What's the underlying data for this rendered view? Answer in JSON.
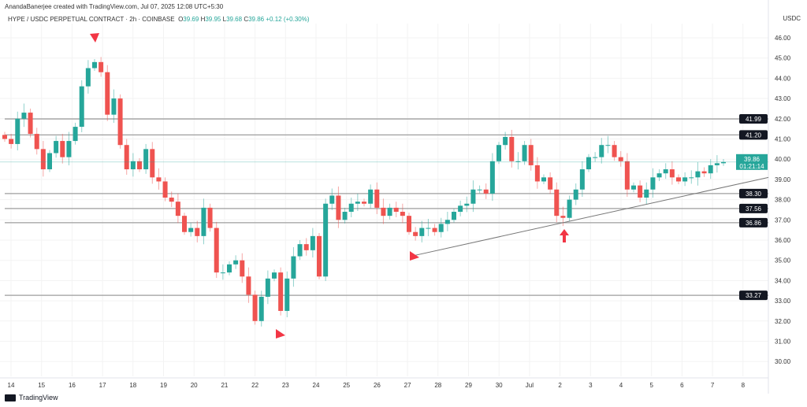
{
  "header": {
    "credit": "AnandaBanerjee created with TradingView.com, Jul 07, 2025 12:08 UTC+5:30",
    "symbol": "HYPE / USDC PERPETUAL CONTRACT · 2h · COINBASE",
    "open_label": "O",
    "open": "39.69",
    "high_label": "H",
    "high": "39.95",
    "low_label": "L",
    "low": "39.68",
    "close_label": "C",
    "close": "39.86",
    "change": "+0.12 (+0.30%)",
    "currency": "USDC"
  },
  "footer": {
    "brand": "TradingView"
  },
  "colors": {
    "up": "#26a69a",
    "down": "#ef5350",
    "level_line": "#9e9e9e",
    "marker": "#f23645",
    "price_label": "#26a69a"
  },
  "chart_data": {
    "type": "candlestick",
    "interval": "2h",
    "ylim": [
      29.5,
      46.6
    ],
    "y_ticks": [
      "46.00",
      "45.00",
      "44.00",
      "43.00",
      "42.00",
      "41.00",
      "40.00",
      "39.00",
      "38.00",
      "37.00",
      "36.00",
      "35.00",
      "34.00",
      "33.00",
      "32.00",
      "31.00",
      "30.00"
    ],
    "x_ticks": [
      "14",
      "15",
      "16",
      "17",
      "18",
      "19",
      "20",
      "21",
      "22",
      "23",
      "24",
      "25",
      "26",
      "27",
      "28",
      "29",
      "30",
      "Jul",
      "2",
      "3",
      "4",
      "5",
      "6",
      "7",
      "8"
    ],
    "closes": [
      41.0,
      40.75,
      42.0,
      42.3,
      41.25,
      40.5,
      39.5,
      40.3,
      40.9,
      40.1,
      40.9,
      41.6,
      43.6,
      44.5,
      44.8,
      44.3,
      42.2,
      43.0,
      40.7,
      39.5,
      39.9,
      39.5,
      40.5,
      39.1,
      38.9,
      38.1,
      37.9,
      37.2,
      36.4,
      36.6,
      36.2,
      37.6,
      36.6,
      34.4,
      34.4,
      34.8,
      35.0,
      34.2,
      33.3,
      32.0,
      33.2,
      34.1,
      34.4,
      32.5,
      34.1,
      35.2,
      35.8,
      35.5,
      36.2,
      34.2,
      37.8,
      38.2,
      37.0,
      37.4,
      37.8,
      37.9,
      37.8,
      38.5,
      37.6,
      37.2,
      37.6,
      37.4,
      37.2,
      36.4,
      36.2,
      36.6,
      36.6,
      36.4,
      36.8,
      37.0,
      37.4,
      37.7,
      37.8,
      38.5,
      38.5,
      38.3,
      39.9,
      40.7,
      41.1,
      39.9,
      39.9,
      40.7,
      39.7,
      38.9,
      39.1,
      38.5,
      37.2,
      37.1,
      38.0,
      38.5,
      39.5,
      40.1,
      40.1,
      40.7,
      40.7,
      40.1,
      39.9,
      38.5,
      38.7,
      38.1,
      38.5,
      39.1,
      39.3,
      39.5,
      39.1,
      38.9,
      39.1,
      39.1,
      39.4,
      39.3,
      39.7,
      39.8,
      39.86
    ],
    "levels": [
      {
        "value": 41.99,
        "label": "41.99"
      },
      {
        "value": 41.2,
        "label": "41.20"
      },
      {
        "value": 38.3,
        "label": "38.30"
      },
      {
        "value": 37.56,
        "label": "37.56"
      },
      {
        "value": 36.86,
        "label": "36.86"
      },
      {
        "value": 33.27,
        "label": "33.27"
      }
    ],
    "current_price": {
      "value": 39.86,
      "label": "39.86",
      "countdown": "01:21:14"
    },
    "trendline": {
      "from": {
        "date": "Jun 27",
        "price": 35.2
      },
      "to": {
        "date": "Jul 8",
        "price": 39.1
      }
    },
    "markers": [
      {
        "date": "Jun 16",
        "price": 45.9,
        "direction": "down"
      },
      {
        "date": "Jun 22",
        "price": 31.0,
        "direction": "up"
      },
      {
        "date": "Jun 27",
        "price": 35.1,
        "direction": "up"
      },
      {
        "date": "Jul 2",
        "price": 36.4,
        "direction": "up"
      }
    ]
  }
}
